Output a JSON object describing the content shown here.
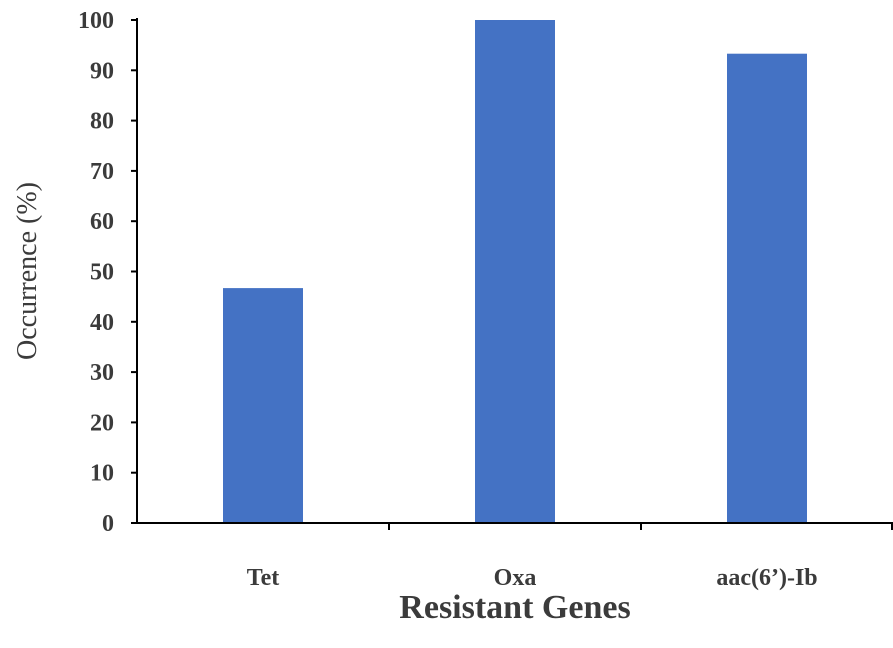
{
  "chart_data": {
    "type": "bar",
    "categories": [
      "Tet",
      "Oxa",
      "aac(6’)-Ib"
    ],
    "values": [
      46.7,
      100,
      93.3
    ],
    "xlabel": "Resistant Genes",
    "ylabel": "Occurrence (%)",
    "ylim": [
      0,
      100
    ],
    "yticks": [
      0,
      10,
      20,
      30,
      40,
      50,
      60,
      70,
      80,
      90,
      100
    ],
    "grid": false,
    "bar_color": "#4472c4",
    "axis_color": "#000000"
  }
}
